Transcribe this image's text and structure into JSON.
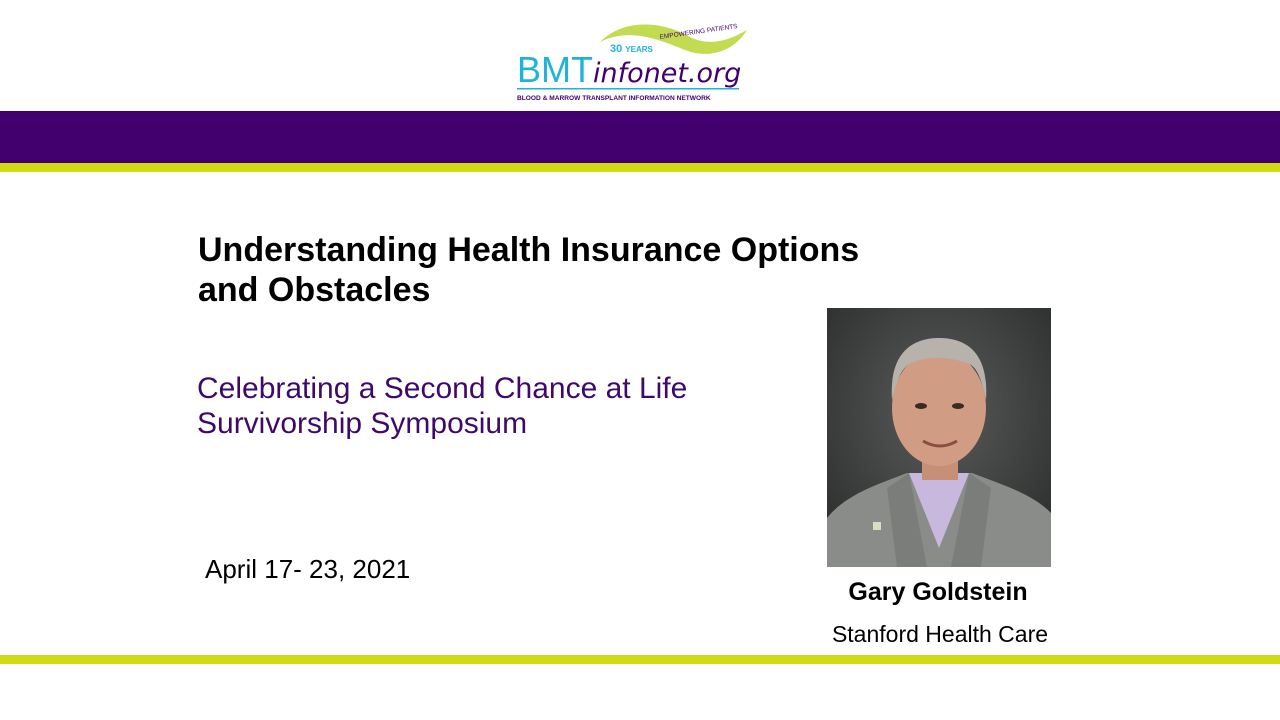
{
  "colors": {
    "brand_purple": "#42006f",
    "accent_lime": "#cfdc14",
    "logo_cyan": "#1fb3dc"
  },
  "logo": {
    "main_left": "BMT",
    "main_right": "infonet.org",
    "years": "30 YEARS",
    "tagline": "EMPOWERING PATIENTS",
    "subline": "BLOOD & MARROW TRANSPLANT INFORMATION NETWORK"
  },
  "slide": {
    "title_line1": "Understanding Health Insurance Options",
    "title_line2": "and Obstacles",
    "subtitle_line1": "Celebrating a Second Chance at Life",
    "subtitle_line2": "Survivorship Symposium",
    "date": "April 17- 23, 2021"
  },
  "speaker": {
    "name": "Gary Goldstein",
    "organization": "Stanford Health Care"
  }
}
